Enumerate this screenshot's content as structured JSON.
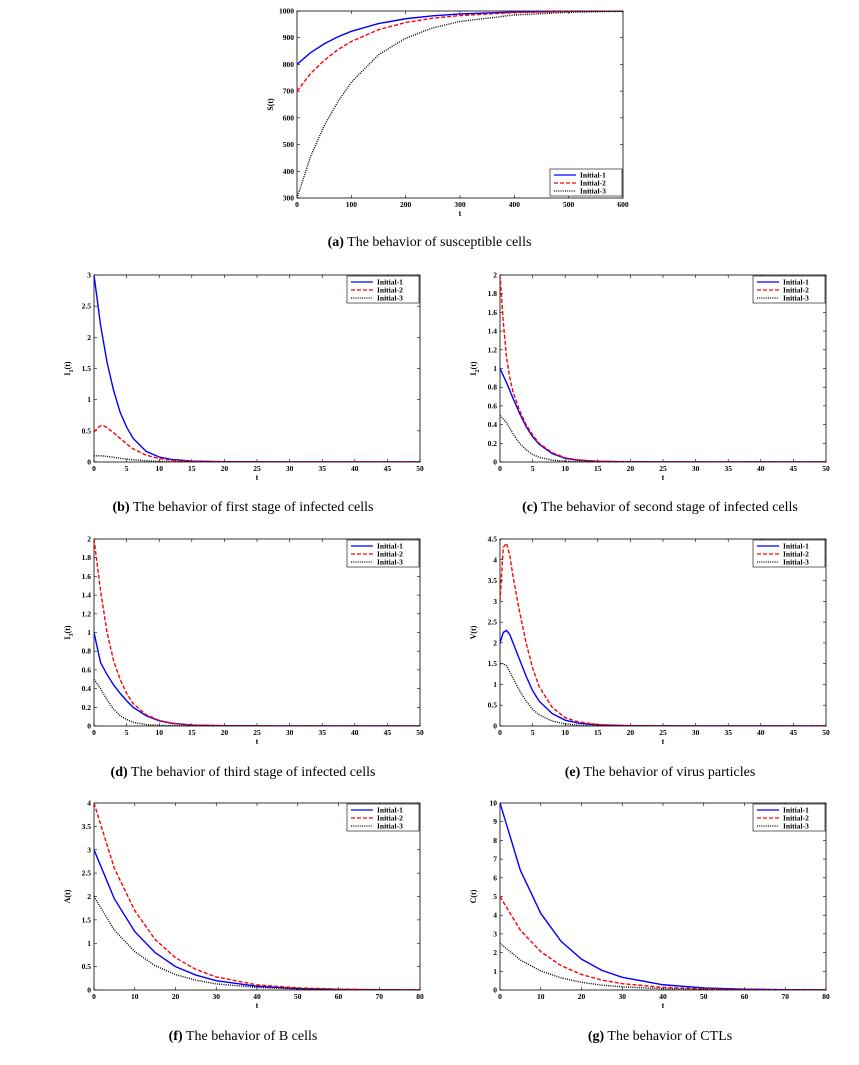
{
  "legend_labels": [
    "Initial-1",
    "Initial-2",
    "Initial-3"
  ],
  "series_styles": [
    {
      "color": "#0000ff",
      "dash": ""
    },
    {
      "color": "#ff0000",
      "dash": "4,2"
    },
    {
      "color": "#000000",
      "dash": "1,1.2"
    }
  ],
  "captions": [
    {
      "tag": "(a)",
      "text": "The behavior of susceptible cells"
    },
    {
      "tag": "(b)",
      "text": "The behavior of first stage of infected cells"
    },
    {
      "tag": "(c)",
      "text": "The behavior of second stage of infected cells"
    },
    {
      "tag": "(d)",
      "text": "The behavior of third stage of infected cells"
    },
    {
      "tag": "(e)",
      "text": "The behavior of virus particles"
    },
    {
      "tag": "(f)",
      "text": "The behavior of B cells"
    },
    {
      "tag": "(g)",
      "text": "The behavior of CTLs"
    }
  ],
  "chart_data": [
    {
      "type": "line",
      "ylabel": "S(t)",
      "xlabel": "t",
      "xlim": [
        0,
        600
      ],
      "ylim": [
        300,
        1000
      ],
      "xticks": [
        0,
        100,
        200,
        300,
        400,
        500,
        600
      ],
      "yticks": [
        300,
        400,
        500,
        600,
        700,
        800,
        900,
        1000
      ],
      "legend_position": "bottom-right",
      "series": [
        {
          "name": "Initial-1",
          "x": [
            0,
            25,
            50,
            75,
            100,
            150,
            200,
            250,
            300,
            400,
            500,
            600
          ],
          "y": [
            800,
            844,
            877,
            903,
            924,
            953,
            971,
            982,
            989,
            996,
            999,
            1000
          ]
        },
        {
          "name": "Initial-2",
          "x": [
            0,
            25,
            50,
            75,
            100,
            150,
            200,
            250,
            300,
            400,
            500,
            600
          ],
          "y": [
            700,
            766,
            815,
            855,
            886,
            930,
            957,
            973,
            983,
            994,
            998,
            1000
          ]
        },
        {
          "name": "Initial-3",
          "x": [
            0,
            25,
            50,
            75,
            100,
            150,
            200,
            250,
            300,
            400,
            500,
            600
          ],
          "y": [
            300,
            455,
            570,
            660,
            733,
            836,
            898,
            937,
            961,
            985,
            995,
            999
          ]
        }
      ]
    },
    {
      "type": "line",
      "ylabel": "I_1(t)",
      "xlabel": "t",
      "xlim": [
        0,
        50
      ],
      "ylim": [
        0,
        3
      ],
      "xticks": [
        0,
        5,
        10,
        15,
        20,
        25,
        30,
        35,
        40,
        45,
        50
      ],
      "yticks": [
        0,
        0.5,
        1,
        1.5,
        2,
        2.5,
        3
      ],
      "legend_position": "top-right",
      "series": [
        {
          "name": "Initial-1",
          "x": [
            0,
            1,
            2,
            3,
            4,
            5,
            6,
            8,
            10,
            12,
            15,
            20,
            30,
            50
          ],
          "y": [
            3.0,
            2.2,
            1.6,
            1.15,
            0.8,
            0.56,
            0.38,
            0.17,
            0.08,
            0.04,
            0.015,
            0.004,
            0.0005,
            0
          ]
        },
        {
          "name": "Initial-2",
          "x": [
            0,
            0.5,
            1,
            1.5,
            2,
            3,
            4,
            5,
            6,
            8,
            10,
            12,
            15,
            20,
            30,
            50
          ],
          "y": [
            0.48,
            0.54,
            0.58,
            0.58,
            0.55,
            0.47,
            0.38,
            0.29,
            0.21,
            0.11,
            0.055,
            0.028,
            0.01,
            0.003,
            0.0003,
            0
          ]
        },
        {
          "name": "Initial-3",
          "x": [
            0,
            1,
            2,
            3,
            4,
            6,
            8,
            10,
            15,
            20,
            50
          ],
          "y": [
            0.1,
            0.1,
            0.09,
            0.075,
            0.06,
            0.035,
            0.02,
            0.01,
            0.003,
            0.001,
            0
          ]
        }
      ]
    },
    {
      "type": "line",
      "ylabel": "I_2(t)",
      "xlabel": "t",
      "xlim": [
        0,
        50
      ],
      "ylim": [
        0,
        2
      ],
      "xticks": [
        0,
        5,
        10,
        15,
        20,
        25,
        30,
        35,
        40,
        45,
        50
      ],
      "yticks": [
        0,
        0.2,
        0.4,
        0.6,
        0.8,
        1,
        1.2,
        1.4,
        1.6,
        1.8,
        2
      ],
      "legend_position": "top-right",
      "series": [
        {
          "name": "Initial-1",
          "x": [
            0,
            1,
            2,
            3,
            4,
            5,
            6,
            8,
            10,
            12,
            15,
            20,
            30,
            50
          ],
          "y": [
            1.0,
            0.85,
            0.68,
            0.52,
            0.38,
            0.27,
            0.19,
            0.09,
            0.04,
            0.02,
            0.007,
            0.002,
            0.0002,
            0
          ]
        },
        {
          "name": "Initial-2",
          "x": [
            0,
            0.5,
            1,
            1.5,
            2,
            3,
            4,
            5,
            6,
            8,
            10,
            12,
            15,
            20,
            30,
            50
          ],
          "y": [
            2.0,
            1.5,
            1.12,
            0.9,
            0.75,
            0.55,
            0.4,
            0.29,
            0.2,
            0.1,
            0.045,
            0.022,
            0.008,
            0.002,
            0.0002,
            0
          ]
        },
        {
          "name": "Initial-3",
          "x": [
            0,
            1,
            2,
            3,
            4,
            5,
            6,
            8,
            10,
            15,
            20,
            50
          ],
          "y": [
            0.5,
            0.42,
            0.3,
            0.2,
            0.13,
            0.08,
            0.05,
            0.02,
            0.008,
            0.001,
            0.0002,
            0
          ]
        }
      ]
    },
    {
      "type": "line",
      "ylabel": "I_3(t)",
      "xlabel": "t",
      "xlim": [
        0,
        50
      ],
      "ylim": [
        0,
        2
      ],
      "xticks": [
        0,
        5,
        10,
        15,
        20,
        25,
        30,
        35,
        40,
        45,
        50
      ],
      "yticks": [
        0,
        0.2,
        0.4,
        0.6,
        0.8,
        1,
        1.2,
        1.4,
        1.6,
        1.8,
        2
      ],
      "legend_position": "top-right",
      "series": [
        {
          "name": "Initial-1",
          "x": [
            0,
            1,
            2,
            3,
            4,
            5,
            6,
            8,
            10,
            12,
            15,
            20,
            30,
            50
          ],
          "y": [
            1.0,
            0.68,
            0.55,
            0.44,
            0.35,
            0.27,
            0.2,
            0.11,
            0.055,
            0.028,
            0.01,
            0.003,
            0.0003,
            0
          ]
        },
        {
          "name": "Initial-2",
          "x": [
            0,
            1,
            2,
            3,
            4,
            5,
            6,
            8,
            10,
            12,
            15,
            20,
            30,
            50
          ],
          "y": [
            2.0,
            1.45,
            1.0,
            0.7,
            0.5,
            0.35,
            0.24,
            0.12,
            0.06,
            0.03,
            0.01,
            0.003,
            0.0003,
            0
          ]
        },
        {
          "name": "Initial-3",
          "x": [
            0,
            1,
            2,
            3,
            4,
            5,
            6,
            8,
            10,
            15,
            20,
            50
          ],
          "y": [
            0.5,
            0.4,
            0.28,
            0.18,
            0.11,
            0.07,
            0.04,
            0.015,
            0.006,
            0.001,
            0.0002,
            0
          ]
        }
      ]
    },
    {
      "type": "line",
      "ylabel": "V(t)",
      "xlabel": "t",
      "xlim": [
        0,
        50
      ],
      "ylim": [
        0,
        4.5
      ],
      "xticks": [
        0,
        5,
        10,
        15,
        20,
        25,
        30,
        35,
        40,
        45,
        50
      ],
      "yticks": [
        0,
        0.5,
        1,
        1.5,
        2,
        2.5,
        3,
        3.5,
        4,
        4.5
      ],
      "legend_position": "top-right",
      "series": [
        {
          "name": "Initial-1",
          "x": [
            0,
            0.5,
            1,
            1.5,
            2,
            3,
            4,
            5,
            6,
            8,
            10,
            12,
            15,
            20,
            30,
            50
          ],
          "y": [
            2.0,
            2.25,
            2.3,
            2.2,
            2.0,
            1.6,
            1.2,
            0.85,
            0.6,
            0.3,
            0.14,
            0.07,
            0.025,
            0.006,
            0.0005,
            0
          ]
        },
        {
          "name": "Initial-2",
          "x": [
            0,
            0.5,
            1,
            1.5,
            2,
            3,
            4,
            5,
            6,
            8,
            10,
            12,
            15,
            20,
            30,
            50
          ],
          "y": [
            3.0,
            4.3,
            4.4,
            4.1,
            3.6,
            2.75,
            2.0,
            1.4,
            0.95,
            0.45,
            0.2,
            0.1,
            0.035,
            0.008,
            0.0006,
            0
          ]
        },
        {
          "name": "Initial-3",
          "x": [
            0,
            0.5,
            1,
            1.5,
            2,
            3,
            4,
            5,
            6,
            8,
            10,
            12,
            15,
            20,
            50
          ],
          "y": [
            1.5,
            1.5,
            1.45,
            1.3,
            1.15,
            0.85,
            0.6,
            0.4,
            0.27,
            0.12,
            0.05,
            0.02,
            0.007,
            0.001,
            0
          ]
        }
      ]
    },
    {
      "type": "line",
      "ylabel": "A(t)",
      "xlabel": "t",
      "xlim": [
        0,
        80
      ],
      "ylim": [
        0,
        4
      ],
      "xticks": [
        0,
        10,
        20,
        30,
        40,
        50,
        60,
        70,
        80
      ],
      "yticks": [
        0,
        0.5,
        1,
        1.5,
        2,
        2.5,
        3,
        3.5,
        4
      ],
      "legend_position": "top-right",
      "series": [
        {
          "name": "Initial-1",
          "x": [
            0,
            5,
            10,
            15,
            20,
            25,
            30,
            40,
            50,
            60,
            70,
            80
          ],
          "y": [
            3.0,
            1.95,
            1.25,
            0.8,
            0.5,
            0.32,
            0.2,
            0.08,
            0.03,
            0.012,
            0.005,
            0.002
          ]
        },
        {
          "name": "Initial-2",
          "x": [
            0,
            5,
            10,
            15,
            20,
            25,
            30,
            40,
            50,
            60,
            70,
            80
          ],
          "y": [
            4.0,
            2.6,
            1.7,
            1.08,
            0.69,
            0.44,
            0.28,
            0.11,
            0.045,
            0.018,
            0.007,
            0.003
          ]
        },
        {
          "name": "Initial-3",
          "x": [
            0,
            5,
            10,
            15,
            20,
            25,
            30,
            40,
            50,
            60,
            70,
            80
          ],
          "y": [
            2.0,
            1.28,
            0.82,
            0.52,
            0.33,
            0.21,
            0.13,
            0.055,
            0.022,
            0.009,
            0.004,
            0.001
          ]
        }
      ]
    },
    {
      "type": "line",
      "ylabel": "C(t)",
      "xlabel": "t",
      "xlim": [
        0,
        80
      ],
      "ylim": [
        0,
        10
      ],
      "xticks": [
        0,
        10,
        20,
        30,
        40,
        50,
        60,
        70,
        80
      ],
      "yticks": [
        0,
        1,
        2,
        3,
        4,
        5,
        6,
        7,
        8,
        9,
        10
      ],
      "legend_position": "top-right",
      "series": [
        {
          "name": "Initial-1",
          "x": [
            0,
            5,
            10,
            15,
            20,
            25,
            30,
            40,
            50,
            60,
            70,
            80
          ],
          "y": [
            10.0,
            6.4,
            4.1,
            2.6,
            1.65,
            1.05,
            0.68,
            0.28,
            0.11,
            0.045,
            0.018,
            0.007
          ]
        },
        {
          "name": "Initial-2",
          "x": [
            0,
            5,
            10,
            15,
            20,
            25,
            30,
            40,
            50,
            60,
            70,
            80
          ],
          "y": [
            5.0,
            3.2,
            2.05,
            1.3,
            0.83,
            0.53,
            0.34,
            0.14,
            0.055,
            0.022,
            0.009,
            0.004
          ]
        },
        {
          "name": "Initial-3",
          "x": [
            0,
            5,
            10,
            15,
            20,
            25,
            30,
            40,
            50,
            60,
            70,
            80
          ],
          "y": [
            2.5,
            1.6,
            1.02,
            0.65,
            0.41,
            0.26,
            0.17,
            0.07,
            0.028,
            0.011,
            0.005,
            0.002
          ]
        }
      ]
    }
  ]
}
